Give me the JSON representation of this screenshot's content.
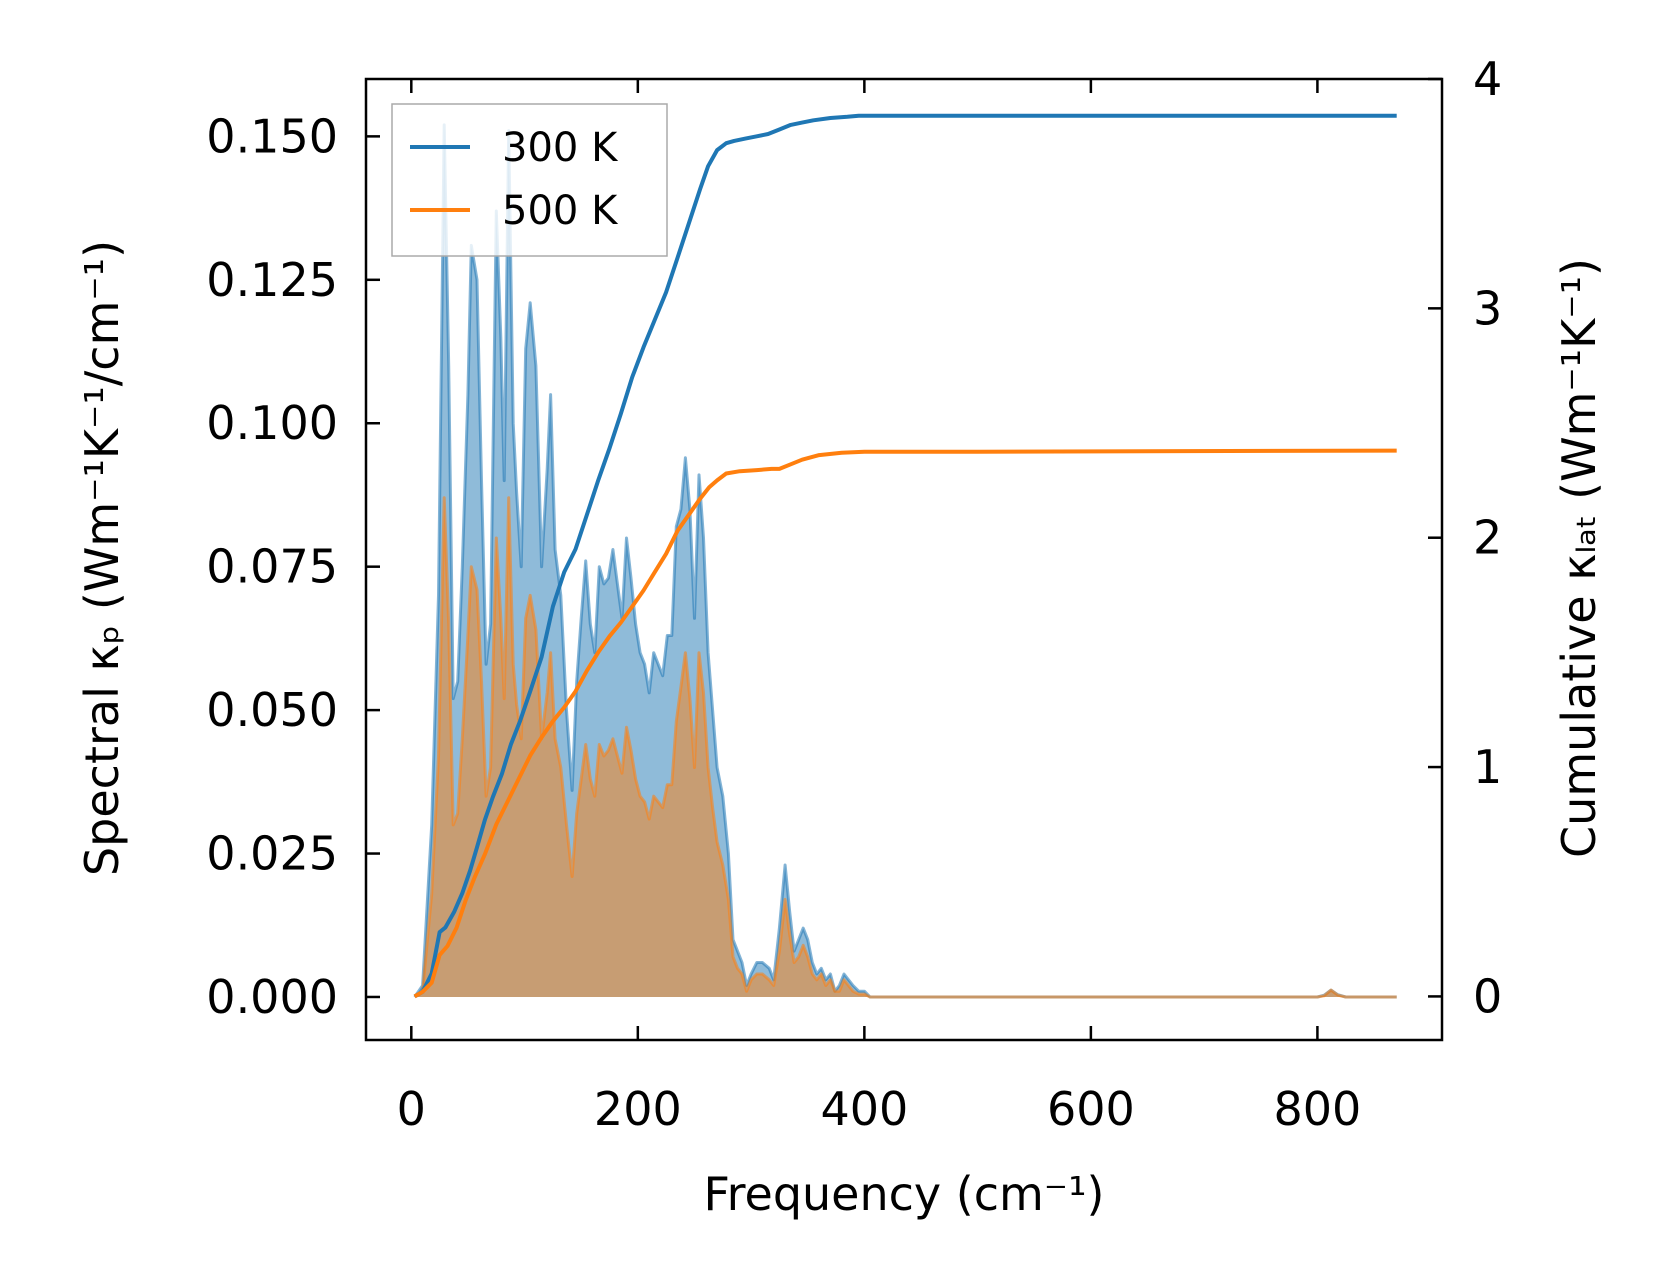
{
  "chart_data": {
    "type": "area",
    "xlabel": "Frequency (cm⁻¹)",
    "ylabel_left": "Spectral κₚ (Wm⁻¹K⁻¹/cm⁻¹)",
    "ylabel_right": "Cumulative κₗₐₜ (Wm⁻¹K⁻¹)",
    "xlim": [
      -40,
      910
    ],
    "ylim_left": [
      -0.0075,
      0.16
    ],
    "ylim_right": [
      -0.19,
      4.0
    ],
    "xticks": [
      0,
      200,
      400,
      600,
      800
    ],
    "xtick_labels": [
      "0",
      "200",
      "400",
      "600",
      "800"
    ],
    "yticks_left": [
      0,
      0.025,
      0.05,
      0.075,
      0.1,
      0.125,
      0.15
    ],
    "ytick_labels_left": [
      "0.000",
      "0.025",
      "0.050",
      "0.075",
      "0.100",
      "0.125",
      "0.150"
    ],
    "yticks_right": [
      0,
      1,
      2,
      3,
      4
    ],
    "ytick_labels_right": [
      "0",
      "1",
      "2",
      "3",
      "4"
    ],
    "legend_position": "top-left",
    "colors": {
      "s300": "#1f77b4",
      "s500": "#ff7f0e"
    },
    "series": [
      {
        "name": "300 K",
        "spectral": [
          [
            3,
            0
          ],
          [
            10,
            0.002
          ],
          [
            18,
            0.03
          ],
          [
            24,
            0.07
          ],
          [
            29,
            0.152
          ],
          [
            33,
            0.11
          ],
          [
            37,
            0.052
          ],
          [
            41,
            0.055
          ],
          [
            45,
            0.075
          ],
          [
            50,
            0.105
          ],
          [
            53,
            0.131
          ],
          [
            58,
            0.125
          ],
          [
            62,
            0.09
          ],
          [
            66,
            0.058
          ],
          [
            70,
            0.065
          ],
          [
            75,
            0.137
          ],
          [
            79,
            0.115
          ],
          [
            82,
            0.09
          ],
          [
            86,
            0.151
          ],
          [
            90,
            0.1
          ],
          [
            93,
            0.088
          ],
          [
            97,
            0.075
          ],
          [
            101,
            0.113
          ],
          [
            105,
            0.121
          ],
          [
            110,
            0.11
          ],
          [
            115,
            0.075
          ],
          [
            120,
            0.092
          ],
          [
            123,
            0.105
          ],
          [
            127,
            0.078
          ],
          [
            132,
            0.07
          ],
          [
            137,
            0.05
          ],
          [
            142,
            0.036
          ],
          [
            146,
            0.055
          ],
          [
            150,
            0.066
          ],
          [
            154,
            0.076
          ],
          [
            158,
            0.065
          ],
          [
            162,
            0.06
          ],
          [
            166,
            0.075
          ],
          [
            170,
            0.072
          ],
          [
            174,
            0.073
          ],
          [
            178,
            0.078
          ],
          [
            182,
            0.072
          ],
          [
            186,
            0.066
          ],
          [
            190,
            0.08
          ],
          [
            194,
            0.073
          ],
          [
            198,
            0.065
          ],
          [
            202,
            0.06
          ],
          [
            206,
            0.058
          ],
          [
            210,
            0.053
          ],
          [
            214,
            0.06
          ],
          [
            218,
            0.058
          ],
          [
            222,
            0.056
          ],
          [
            226,
            0.063
          ],
          [
            230,
            0.063
          ],
          [
            234,
            0.082
          ],
          [
            238,
            0.085
          ],
          [
            242,
            0.094
          ],
          [
            246,
            0.085
          ],
          [
            250,
            0.066
          ],
          [
            254,
            0.091
          ],
          [
            258,
            0.08
          ],
          [
            262,
            0.06
          ],
          [
            266,
            0.05
          ],
          [
            270,
            0.04
          ],
          [
            275,
            0.035
          ],
          [
            280,
            0.025
          ],
          [
            284,
            0.01
          ],
          [
            288,
            0.008
          ],
          [
            292,
            0.006
          ],
          [
            296,
            0.002
          ],
          [
            300,
            0.004
          ],
          [
            305,
            0.006
          ],
          [
            310,
            0.006
          ],
          [
            316,
            0.005
          ],
          [
            320,
            0.003
          ],
          [
            325,
            0.012
          ],
          [
            330,
            0.023
          ],
          [
            334,
            0.015
          ],
          [
            338,
            0.008
          ],
          [
            342,
            0.01
          ],
          [
            346,
            0.012
          ],
          [
            350,
            0.01
          ],
          [
            354,
            0.006
          ],
          [
            358,
            0.004
          ],
          [
            362,
            0.005
          ],
          [
            366,
            0.003
          ],
          [
            370,
            0.004
          ],
          [
            374,
            0.001
          ],
          [
            378,
            0.002
          ],
          [
            382,
            0.004
          ],
          [
            386,
            0.003
          ],
          [
            390,
            0.002
          ],
          [
            395,
            0.001
          ],
          [
            400,
            0.001
          ],
          [
            405,
            0
          ],
          [
            410,
            0
          ],
          [
            500,
            0
          ],
          [
            600,
            0
          ],
          [
            700,
            0
          ],
          [
            800,
            0
          ],
          [
            806,
            0.0003
          ],
          [
            812,
            0.0012
          ],
          [
            818,
            0.0004
          ],
          [
            825,
            0
          ],
          [
            870,
            0
          ]
        ],
        "cumulative": [
          [
            3,
            0
          ],
          [
            10,
            0.02
          ],
          [
            18,
            0.1
          ],
          [
            25,
            0.28
          ],
          [
            30,
            0.3
          ],
          [
            38,
            0.37
          ],
          [
            45,
            0.45
          ],
          [
            52,
            0.55
          ],
          [
            58,
            0.65
          ],
          [
            65,
            0.77
          ],
          [
            72,
            0.87
          ],
          [
            80,
            0.97
          ],
          [
            88,
            1.1
          ],
          [
            96,
            1.2
          ],
          [
            105,
            1.33
          ],
          [
            115,
            1.48
          ],
          [
            125,
            1.7
          ],
          [
            135,
            1.85
          ],
          [
            145,
            1.95
          ],
          [
            155,
            2.1
          ],
          [
            165,
            2.25
          ],
          [
            175,
            2.39
          ],
          [
            185,
            2.54
          ],
          [
            195,
            2.7
          ],
          [
            205,
            2.83
          ],
          [
            215,
            2.95
          ],
          [
            225,
            3.07
          ],
          [
            235,
            3.22
          ],
          [
            245,
            3.37
          ],
          [
            255,
            3.52
          ],
          [
            262,
            3.62
          ],
          [
            270,
            3.69
          ],
          [
            278,
            3.72
          ],
          [
            285,
            3.73
          ],
          [
            295,
            3.74
          ],
          [
            305,
            3.75
          ],
          [
            315,
            3.76
          ],
          [
            325,
            3.78
          ],
          [
            335,
            3.8
          ],
          [
            345,
            3.81
          ],
          [
            355,
            3.82
          ],
          [
            370,
            3.83
          ],
          [
            385,
            3.835
          ],
          [
            395,
            3.84
          ],
          [
            410,
            3.84
          ],
          [
            600,
            3.84
          ],
          [
            870,
            3.84
          ]
        ]
      },
      {
        "name": "500 K",
        "spectral": [
          [
            3,
            0
          ],
          [
            10,
            0.001
          ],
          [
            18,
            0.018
          ],
          [
            24,
            0.042
          ],
          [
            29,
            0.087
          ],
          [
            33,
            0.065
          ],
          [
            37,
            0.03
          ],
          [
            41,
            0.032
          ],
          [
            45,
            0.045
          ],
          [
            50,
            0.063
          ],
          [
            53,
            0.075
          ],
          [
            58,
            0.071
          ],
          [
            62,
            0.055
          ],
          [
            66,
            0.035
          ],
          [
            70,
            0.04
          ],
          [
            75,
            0.08
          ],
          [
            79,
            0.066
          ],
          [
            82,
            0.052
          ],
          [
            86,
            0.087
          ],
          [
            90,
            0.058
          ],
          [
            93,
            0.051
          ],
          [
            97,
            0.045
          ],
          [
            101,
            0.066
          ],
          [
            105,
            0.07
          ],
          [
            110,
            0.064
          ],
          [
            115,
            0.045
          ],
          [
            120,
            0.053
          ],
          [
            123,
            0.06
          ],
          [
            127,
            0.045
          ],
          [
            132,
            0.04
          ],
          [
            137,
            0.03
          ],
          [
            142,
            0.021
          ],
          [
            146,
            0.032
          ],
          [
            150,
            0.038
          ],
          [
            154,
            0.044
          ],
          [
            158,
            0.038
          ],
          [
            162,
            0.035
          ],
          [
            166,
            0.044
          ],
          [
            170,
            0.042
          ],
          [
            174,
            0.043
          ],
          [
            178,
            0.045
          ],
          [
            182,
            0.042
          ],
          [
            186,
            0.039
          ],
          [
            190,
            0.047
          ],
          [
            194,
            0.043
          ],
          [
            198,
            0.038
          ],
          [
            202,
            0.035
          ],
          [
            206,
            0.034
          ],
          [
            210,
            0.031
          ],
          [
            214,
            0.035
          ],
          [
            218,
            0.034
          ],
          [
            222,
            0.033
          ],
          [
            226,
            0.037
          ],
          [
            230,
            0.037
          ],
          [
            234,
            0.048
          ],
          [
            238,
            0.054
          ],
          [
            242,
            0.06
          ],
          [
            246,
            0.052
          ],
          [
            250,
            0.04
          ],
          [
            254,
            0.06
          ],
          [
            258,
            0.053
          ],
          [
            262,
            0.04
          ],
          [
            266,
            0.033
          ],
          [
            270,
            0.027
          ],
          [
            275,
            0.023
          ],
          [
            280,
            0.017
          ],
          [
            284,
            0.007
          ],
          [
            288,
            0.005
          ],
          [
            292,
            0.004
          ],
          [
            296,
            0.001
          ],
          [
            300,
            0.003
          ],
          [
            305,
            0.004
          ],
          [
            310,
            0.004
          ],
          [
            316,
            0.003
          ],
          [
            320,
            0.002
          ],
          [
            325,
            0.008
          ],
          [
            330,
            0.017
          ],
          [
            334,
            0.011
          ],
          [
            338,
            0.006
          ],
          [
            342,
            0.007
          ],
          [
            346,
            0.009
          ],
          [
            350,
            0.007
          ],
          [
            354,
            0.004
          ],
          [
            358,
            0.003
          ],
          [
            362,
            0.004
          ],
          [
            366,
            0.002
          ],
          [
            370,
            0.003
          ],
          [
            374,
            0.001
          ],
          [
            378,
            0.001
          ],
          [
            382,
            0.003
          ],
          [
            386,
            0.002
          ],
          [
            390,
            0.001
          ],
          [
            395,
            0.0005
          ],
          [
            400,
            0.0005
          ],
          [
            405,
            0
          ],
          [
            410,
            0
          ],
          [
            500,
            0
          ],
          [
            600,
            0
          ],
          [
            700,
            0
          ],
          [
            800,
            0
          ],
          [
            806,
            0.0002
          ],
          [
            812,
            0.0012
          ],
          [
            818,
            0.0003
          ],
          [
            825,
            0
          ],
          [
            870,
            0
          ]
        ],
        "cumulative": [
          [
            3,
            0
          ],
          [
            10,
            0.02
          ],
          [
            18,
            0.06
          ],
          [
            25,
            0.18
          ],
          [
            32,
            0.22
          ],
          [
            40,
            0.3
          ],
          [
            48,
            0.42
          ],
          [
            56,
            0.52
          ],
          [
            65,
            0.62
          ],
          [
            75,
            0.75
          ],
          [
            85,
            0.85
          ],
          [
            95,
            0.95
          ],
          [
            105,
            1.05
          ],
          [
            115,
            1.13
          ],
          [
            125,
            1.2
          ],
          [
            135,
            1.26
          ],
          [
            145,
            1.33
          ],
          [
            155,
            1.42
          ],
          [
            165,
            1.5
          ],
          [
            175,
            1.57
          ],
          [
            185,
            1.63
          ],
          [
            195,
            1.7
          ],
          [
            205,
            1.77
          ],
          [
            215,
            1.85
          ],
          [
            225,
            1.93
          ],
          [
            235,
            2.03
          ],
          [
            245,
            2.1
          ],
          [
            255,
            2.17
          ],
          [
            263,
            2.22
          ],
          [
            270,
            2.25
          ],
          [
            278,
            2.28
          ],
          [
            290,
            2.29
          ],
          [
            305,
            2.295
          ],
          [
            318,
            2.3
          ],
          [
            325,
            2.3
          ],
          [
            335,
            2.32
          ],
          [
            345,
            2.34
          ],
          [
            360,
            2.36
          ],
          [
            380,
            2.37
          ],
          [
            400,
            2.375
          ],
          [
            500,
            2.375
          ],
          [
            870,
            2.38
          ]
        ]
      }
    ]
  }
}
